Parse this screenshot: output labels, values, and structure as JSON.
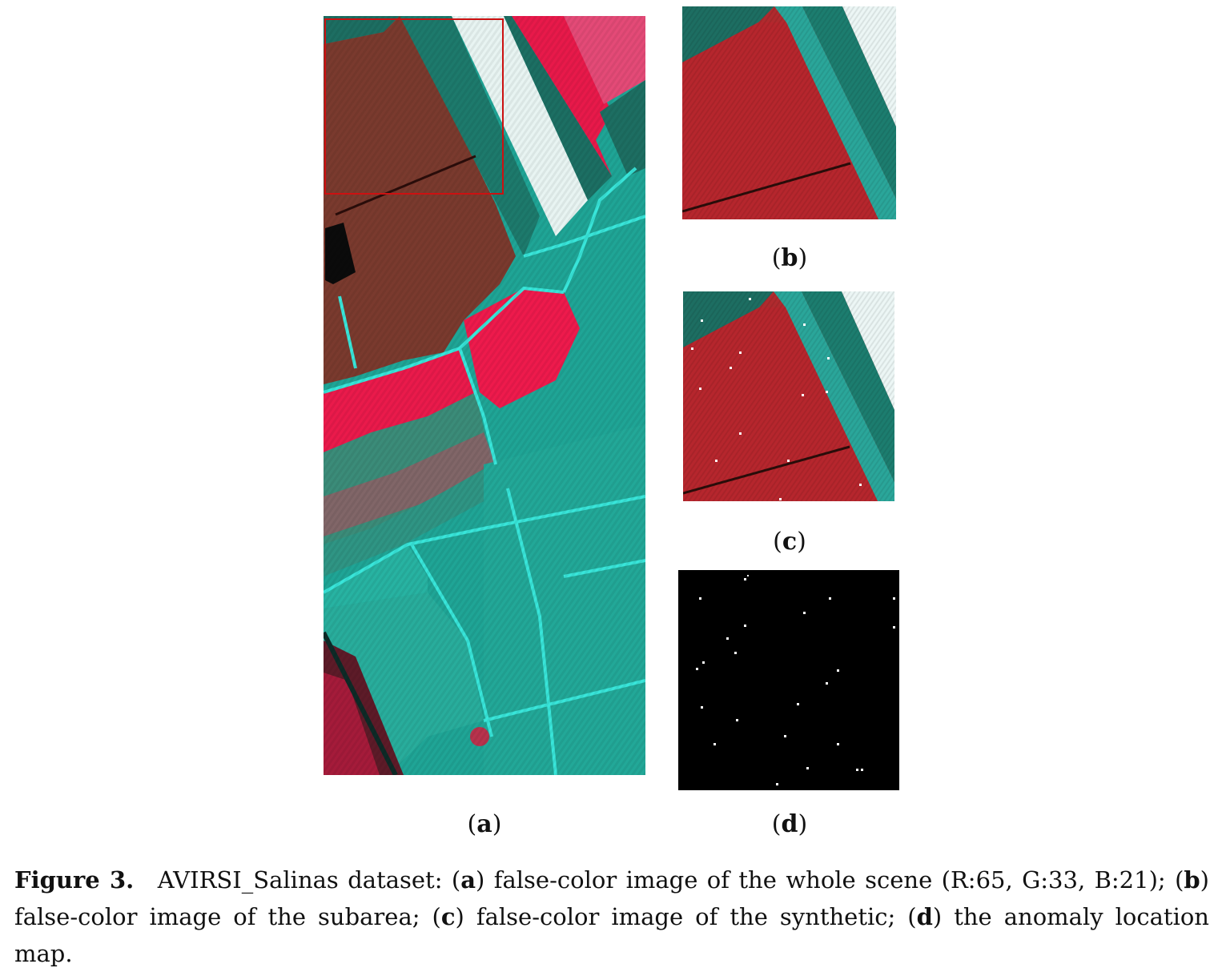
{
  "panels": {
    "a": {
      "label_open": "(",
      "label_letter": "a",
      "label_close": ")"
    },
    "b": {
      "label_open": "(",
      "label_letter": "b",
      "label_close": ")"
    },
    "c": {
      "label_open": "(",
      "label_letter": "c",
      "label_close": ")"
    },
    "d": {
      "label_open": "(",
      "label_letter": "d",
      "label_close": ")"
    }
  },
  "colors": {
    "field_brown": "#7a3a2e",
    "field_red": "#e8194a",
    "field_teal": "#1fa596",
    "field_cyan_edge": "#38e6da",
    "field_dark_teal": "#1d6e62",
    "white_strip": "#e8f4f2",
    "anomaly_bg": "#000000",
    "anomaly_point": "#ffffff",
    "highlight_box": "#cc1111"
  },
  "caption": {
    "figure_label": "Figure 3.",
    "part1": "AVIRSI_Salinas dataset: (",
    "a": "a",
    "part2": ") false-color image of the whole scene (R:65, G:33, B:21); (",
    "b": "b",
    "part3": ") false-color image of the subarea; (",
    "c": "c",
    "part4": ") false-color image of the synthetic; (",
    "d": "d",
    "part5": ") the anomaly location map."
  }
}
